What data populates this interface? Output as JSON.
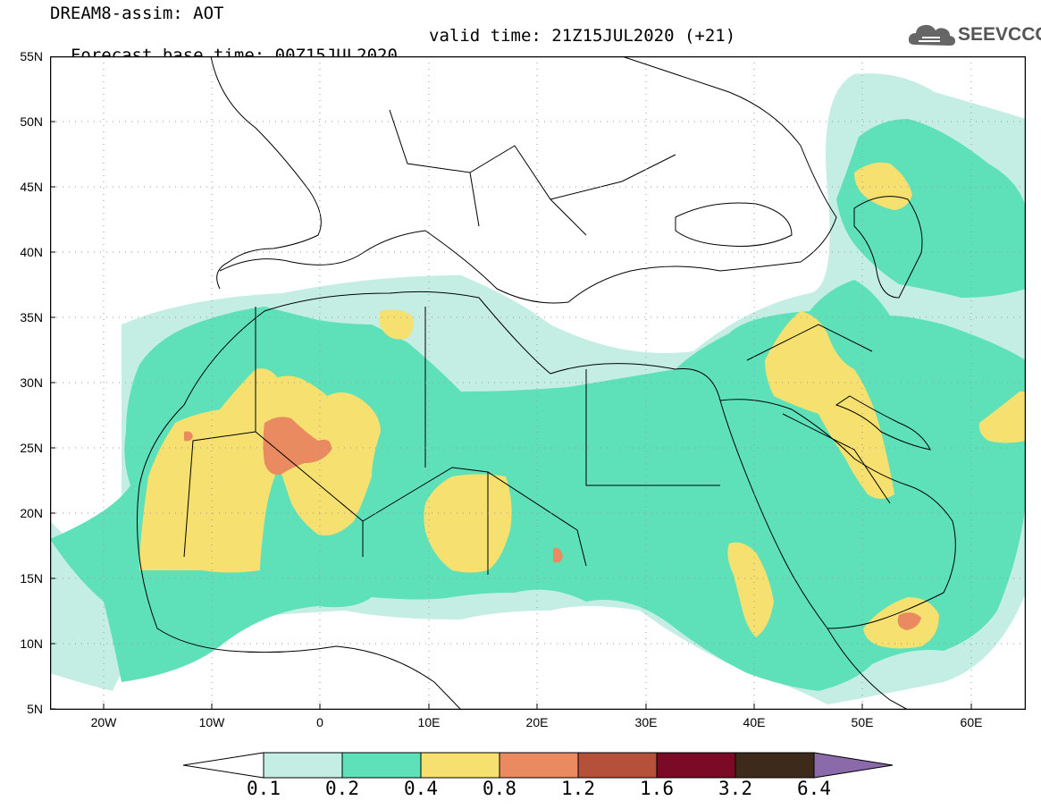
{
  "title": {
    "line1": "DREAM8-assim: AOT",
    "line2_base": "Forecast base time: 00Z15JUL2020",
    "line2_valid": "valid time: 21Z15JUL2020 (+21)"
  },
  "logo": {
    "text": "SEEVCCC",
    "icon": "cloud-icon"
  },
  "map": {
    "variable": "AOT",
    "lat_ticks": [
      "55N",
      "50N",
      "45N",
      "40N",
      "35N",
      "30N",
      "25N",
      "20N",
      "15N",
      "10N",
      "5N"
    ],
    "lon_ticks": [
      "20W",
      "10W",
      "0",
      "10E",
      "20E",
      "30E",
      "40E",
      "50E",
      "60E"
    ],
    "extent": {
      "lon": [
        -25,
        65
      ],
      "lat": [
        5,
        55
      ]
    }
  },
  "colorbar": {
    "labels": [
      "0.1",
      "0.2",
      "0.4",
      "0.8",
      "1.2",
      "1.6",
      "3.2",
      "6.4"
    ],
    "colors": [
      "#c4eee4",
      "#5ee0b8",
      "#f5e070",
      "#e98a60",
      "#b5503a",
      "#7a0a25",
      "#3d2a1a"
    ],
    "extend_low_color": "#ffffff",
    "extend_high_color": "#8a6aa8"
  },
  "palette": {
    "c1": "#c4eee4",
    "c2": "#5ee0b8",
    "c3": "#f5e070",
    "c4": "#e98a60"
  }
}
